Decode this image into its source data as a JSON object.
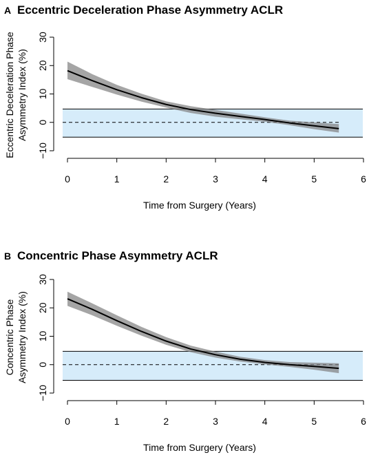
{
  "chart_data": [
    {
      "type": "line",
      "panel_label": "A",
      "title": "Eccentric Deceleration Phase Asymmetry ACLR",
      "xlabel": "Time from Surgery (Years)",
      "ylabel_lines": [
        "Eccentric Deceleration Phase",
        "Asymmetry Index (%)"
      ],
      "xlim": [
        0,
        6
      ],
      "ylim": [
        -10,
        30
      ],
      "xticks": [
        "0",
        "1",
        "2",
        "3",
        "4",
        "5",
        "6"
      ],
      "yticks": [
        "−10",
        "0",
        "10",
        "20",
        "30"
      ],
      "xtick_values": [
        0,
        1,
        2,
        3,
        4,
        5,
        6
      ],
      "ytick_values": [
        -10,
        0,
        10,
        20,
        30
      ],
      "reference_band": {
        "lower": -5.2,
        "upper": 4.7,
        "color": "#d6ecfa"
      },
      "zero_line": {
        "y": 0,
        "style": "dashed"
      },
      "series": [
        {
          "x": [
            0,
            0.5,
            1,
            1.5,
            2,
            2.5,
            3,
            3.5,
            4,
            4.5,
            5,
            5.5
          ],
          "y": [
            18.2,
            14.7,
            11.5,
            8.7,
            6.3,
            4.5,
            3.2,
            2.1,
            1.0,
            -0.2,
            -1.2,
            -2.2
          ],
          "ci_lower": [
            15.2,
            12.5,
            9.8,
            7.3,
            5.2,
            3.3,
            2.0,
            1.1,
            0.2,
            -1.0,
            -2.4,
            -3.6
          ],
          "ci_upper": [
            21.4,
            17.0,
            13.2,
            10.1,
            7.4,
            5.7,
            4.4,
            3.1,
            1.8,
            0.6,
            0.0,
            -0.6
          ],
          "line_color": "#000000",
          "band_color": "#7f7f7f"
        }
      ]
    },
    {
      "type": "line",
      "panel_label": "B",
      "title": "Concentric Phase Asymmetry ACLR",
      "xlabel": "Time from Surgery (Years)",
      "ylabel_lines": [
        "Concentric Phase",
        "Asymmetry Index (%)"
      ],
      "xlim": [
        0,
        6
      ],
      "ylim": [
        -10,
        30
      ],
      "xticks": [
        "0",
        "1",
        "2",
        "3",
        "4",
        "5",
        "6"
      ],
      "yticks": [
        "−10",
        "0",
        "10",
        "20",
        "30"
      ],
      "xtick_values": [
        0,
        1,
        2,
        3,
        4,
        5,
        6
      ],
      "ytick_values": [
        -10,
        0,
        10,
        20,
        30
      ],
      "reference_band": {
        "lower": -5.5,
        "upper": 4.7,
        "color": "#d6ecfa"
      },
      "zero_line": {
        "y": 0,
        "style": "dashed"
      },
      "series": [
        {
          "x": [
            0,
            0.5,
            1,
            1.5,
            2,
            2.5,
            3,
            3.5,
            4,
            4.5,
            5,
            5.5
          ],
          "y": [
            23.2,
            19.5,
            15.5,
            11.7,
            8.3,
            5.5,
            3.5,
            1.9,
            0.8,
            0.0,
            -0.6,
            -1.3
          ],
          "ci_lower": [
            20.7,
            17.4,
            13.7,
            10.2,
            7.0,
            4.4,
            2.5,
            1.1,
            0.1,
            -0.8,
            -1.8,
            -3.0
          ],
          "ci_upper": [
            25.7,
            21.6,
            17.4,
            13.3,
            9.7,
            6.7,
            4.6,
            2.8,
            1.6,
            0.9,
            0.7,
            0.5
          ],
          "line_color": "#000000",
          "band_color": "#7f7f7f"
        }
      ]
    }
  ]
}
